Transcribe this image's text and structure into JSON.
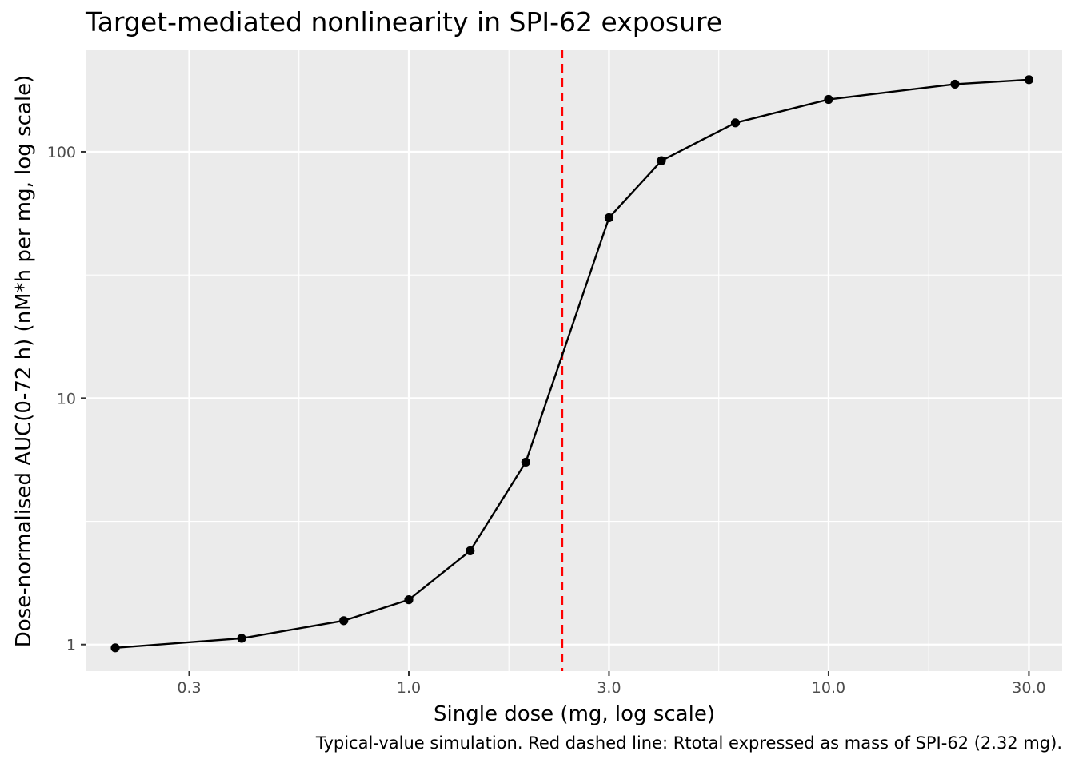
{
  "chart_data": {
    "type": "line",
    "title": "Target-mediated nonlinearity in SPI-62 exposure",
    "xlabel": "Single dose (mg, log scale)",
    "ylabel": "Dose-normalised AUC(0-72 h) (nM*h per mg, log scale)",
    "caption": "Typical-value simulation. Red dashed line: Rtotal expressed as mass of SPI-62 (2.32 mg).",
    "x_scale": "log10",
    "y_scale": "log10",
    "xlim": [
      0.17,
      36
    ],
    "ylim": [
      0.78,
      260
    ],
    "x_ticks": [
      {
        "value": 0.3,
        "label": "0.3"
      },
      {
        "value": 1,
        "label": "1.0"
      },
      {
        "value": 3,
        "label": "3.0"
      },
      {
        "value": 10,
        "label": "10.0"
      },
      {
        "value": 30,
        "label": "30.0"
      }
    ],
    "x_minor_ticks": [
      0.5477,
      1.7321,
      5.4772,
      17.3205
    ],
    "y_ticks": [
      {
        "value": 1,
        "label": "1"
      },
      {
        "value": 10,
        "label": "10"
      },
      {
        "value": 100,
        "label": "100"
      }
    ],
    "y_minor_ticks": [
      3.1623,
      31.623
    ],
    "series": [
      {
        "color": "#000000",
        "x": [
          0.2,
          0.4,
          0.7,
          1.0,
          1.4,
          1.9,
          3.0,
          4.0,
          6.0,
          10.0,
          20.0,
          30.0
        ],
        "y": [
          0.97,
          1.06,
          1.25,
          1.52,
          2.4,
          5.5,
          54,
          92,
          131,
          163,
          188,
          196
        ]
      }
    ],
    "reference_line": {
      "x": 2.32,
      "color": "#ff0000",
      "style": "dashed"
    },
    "colors": {
      "panel_background": "#ebebeb",
      "grid": "#ffffff",
      "line": "#000000",
      "reference": "#ff0000"
    },
    "grid": true,
    "legend": "none"
  }
}
